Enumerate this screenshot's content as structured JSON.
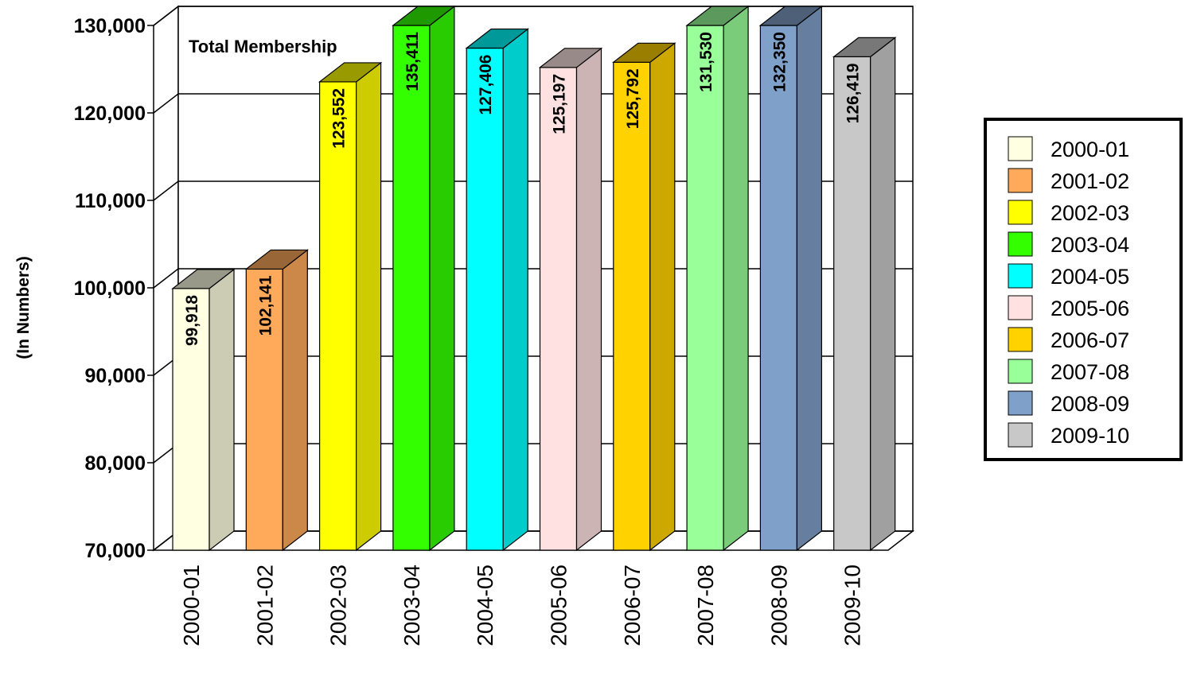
{
  "chart_data": {
    "type": "bar",
    "title": "Total Membership",
    "ylabel": "(In Numbers)",
    "xlabel": "",
    "ylim": [
      70000,
      130000
    ],
    "yticks": [
      70000,
      80000,
      90000,
      100000,
      110000,
      120000,
      130000
    ],
    "ytick_labels": [
      "70,000",
      "80,000",
      "90,000",
      "100,000",
      "110,000",
      "120,000",
      "130,000"
    ],
    "grid": true,
    "legend_position": "right",
    "categories": [
      "2000-01",
      "2001-02",
      "2002-03",
      "2003-04",
      "2004-05",
      "2005-06",
      "2006-07",
      "2007-08",
      "2008-09",
      "2009-10"
    ],
    "values": [
      99918,
      102141,
      123552,
      135411,
      127406,
      125197,
      125792,
      131530,
      132350,
      126419
    ],
    "value_labels": [
      "99,918",
      "102,141",
      "123,552",
      "135,411",
      "127,406",
      "125,197",
      "125,792",
      "131,530",
      "132,350",
      "126,419"
    ],
    "colors": [
      "#FFFFE1",
      "#FFAA5A",
      "#FFFF00",
      "#33FF00",
      "#00FFFF",
      "#FFE1E1",
      "#FFD200",
      "#99FF99",
      "#7FA0C8",
      "#C8C8C8"
    ],
    "side_colors": [
      "#CCCCB4",
      "#CC8848",
      "#CCCC00",
      "#29CC00",
      "#00CCCC",
      "#CCB4B4",
      "#CCA800",
      "#7ACC7A",
      "#667FA0",
      "#A0A0A0"
    ],
    "top_colors": [
      "#99998A",
      "#996637",
      "#999900",
      "#1F9900",
      "#009999",
      "#998A8A",
      "#997E00",
      "#5C995C",
      "#4D6078",
      "#787878"
    ]
  }
}
